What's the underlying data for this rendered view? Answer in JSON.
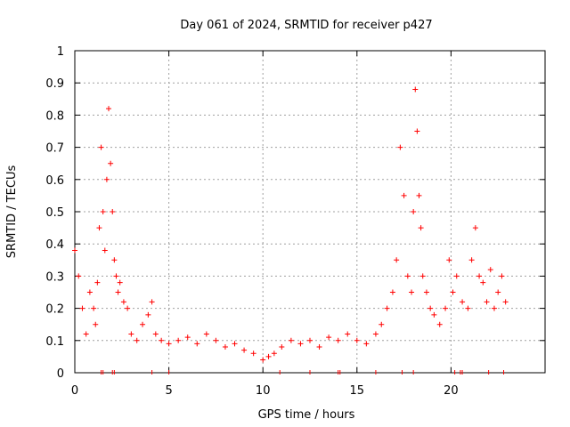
{
  "chart_data": {
    "type": "scatter",
    "title": "Day 061 of 2024, SRMTID for receiver p427",
    "xlabel": "GPS time / hours",
    "ylabel": "SRMTID / TECUs",
    "xlim": [
      0,
      25
    ],
    "ylim": [
      0,
      1
    ],
    "xticks": [
      0,
      5,
      10,
      15,
      20
    ],
    "xtick_labels": [
      "0",
      "5",
      "10",
      "15",
      "20"
    ],
    "yticks": [
      0,
      0.1,
      0.2,
      0.3,
      0.4,
      0.5,
      0.6,
      0.7,
      0.8,
      0.9,
      1
    ],
    "ytick_labels": [
      "0",
      "0.1",
      "0.2",
      "0.3",
      "0.4",
      "0.5",
      "0.6",
      "0.7",
      "0.8",
      "0.9",
      "1"
    ],
    "grid": true,
    "marker": "+",
    "color": "#ff0000",
    "series": [
      {
        "name": "SRMTID",
        "x": [
          0.0,
          0.2,
          0.4,
          0.6,
          0.8,
          1.0,
          1.1,
          1.2,
          1.3,
          1.4,
          1.5,
          1.6,
          1.7,
          1.8,
          1.9,
          2.0,
          2.1,
          2.2,
          2.3,
          2.4,
          2.6,
          2.8,
          3.0,
          3.3,
          3.6,
          3.9,
          4.1,
          4.3,
          4.6,
          5.0,
          5.5,
          6.0,
          6.5,
          7.0,
          7.5,
          8.0,
          8.5,
          9.0,
          9.5,
          10.0,
          10.3,
          10.6,
          11.0,
          11.5,
          12.0,
          12.5,
          13.0,
          13.5,
          14.0,
          14.5,
          15.0,
          15.5,
          16.0,
          16.3,
          16.6,
          16.9,
          17.1,
          17.3,
          17.5,
          17.7,
          17.9,
          18.0,
          18.1,
          18.2,
          18.3,
          18.4,
          18.5,
          18.7,
          18.9,
          19.1,
          19.4,
          19.7,
          19.9,
          20.1,
          20.3,
          20.6,
          20.9,
          21.1,
          21.3,
          21.5,
          21.7,
          21.9,
          22.1,
          22.3,
          22.5,
          22.7,
          22.9
        ],
        "y": [
          0.38,
          0.3,
          0.2,
          0.12,
          0.25,
          0.2,
          0.15,
          0.28,
          0.45,
          0.7,
          0.5,
          0.38,
          0.6,
          0.82,
          0.65,
          0.5,
          0.35,
          0.3,
          0.25,
          0.28,
          0.22,
          0.2,
          0.12,
          0.1,
          0.15,
          0.18,
          0.22,
          0.12,
          0.1,
          0.09,
          0.1,
          0.11,
          0.09,
          0.12,
          0.1,
          0.08,
          0.09,
          0.07,
          0.06,
          0.04,
          0.05,
          0.06,
          0.08,
          0.1,
          0.09,
          0.1,
          0.08,
          0.11,
          0.1,
          0.12,
          0.1,
          0.09,
          0.12,
          0.15,
          0.2,
          0.25,
          0.35,
          0.7,
          0.55,
          0.3,
          0.25,
          0.5,
          0.88,
          0.75,
          0.55,
          0.45,
          0.3,
          0.25,
          0.2,
          0.18,
          0.15,
          0.2,
          0.35,
          0.25,
          0.3,
          0.22,
          0.2,
          0.35,
          0.45,
          0.3,
          0.28,
          0.22,
          0.32,
          0.2,
          0.25,
          0.3,
          0.22
        ]
      }
    ],
    "rug_x": [
      1.4,
      1.5,
      2.0,
      2.1,
      4.1,
      5.0,
      10.9,
      12.5,
      14.0,
      14.1,
      16.0,
      17.4,
      18.0,
      20.2,
      20.5,
      20.6,
      22.0,
      22.8
    ]
  }
}
